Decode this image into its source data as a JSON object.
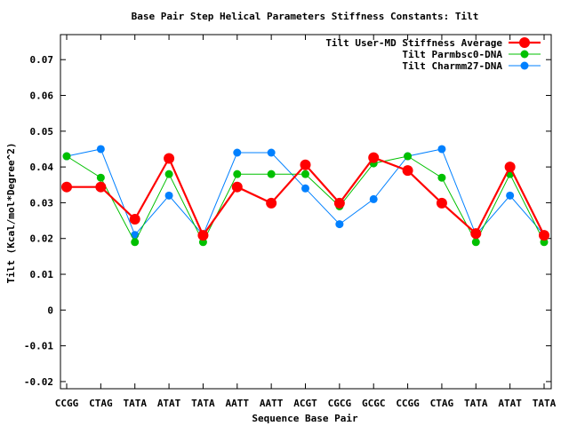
{
  "chart_data": {
    "type": "line",
    "title": "Base Pair Step Helical Parameters Stiffness Constants: Tilt",
    "xlabel": "Sequence Base Pair",
    "ylabel": "Tilt (Kcal/mol*Degree^2)",
    "categories": [
      "CCGG",
      "CTAG",
      "TATA",
      "ATAT",
      "TATA",
      "AATT",
      "AATT",
      "ACGT",
      "CGCG",
      "GCGC",
      "CCGG",
      "CTAG",
      "TATA",
      "ATAT",
      "TATA"
    ],
    "ylim": [
      -0.022,
      0.077
    ],
    "yticks": [
      "0.07",
      "0.06",
      "0.05",
      "0.04",
      "0.03",
      "0.02",
      "0.01",
      "0",
      "-0.01",
      "-0.02"
    ],
    "grid": false,
    "legend_position": "top-right",
    "series": [
      {
        "name": "Tilt User-MD Stiffness Average",
        "color": "#ff0000",
        "values": [
          0.0344,
          0.0344,
          0.0254,
          0.0424,
          0.0209,
          0.0344,
          0.0299,
          0.0406,
          0.0299,
          0.0426,
          0.039,
          0.0299,
          0.0214,
          0.04,
          0.0209
        ]
      },
      {
        "name": "Tilt Parmbsc0-DNA",
        "color": "#00c000",
        "values": [
          0.043,
          0.037,
          0.019,
          0.038,
          0.019,
          0.038,
          0.038,
          0.038,
          0.029,
          0.041,
          0.043,
          0.037,
          0.019,
          0.038,
          0.019
        ]
      },
      {
        "name": "Tilt Charmm27-DNA",
        "color": "#0080ff",
        "values": [
          0.043,
          0.045,
          0.021,
          0.032,
          0.021,
          0.044,
          0.044,
          0.034,
          0.024,
          0.031,
          0.043,
          0.045,
          0.021,
          0.032,
          0.021
        ]
      }
    ]
  }
}
